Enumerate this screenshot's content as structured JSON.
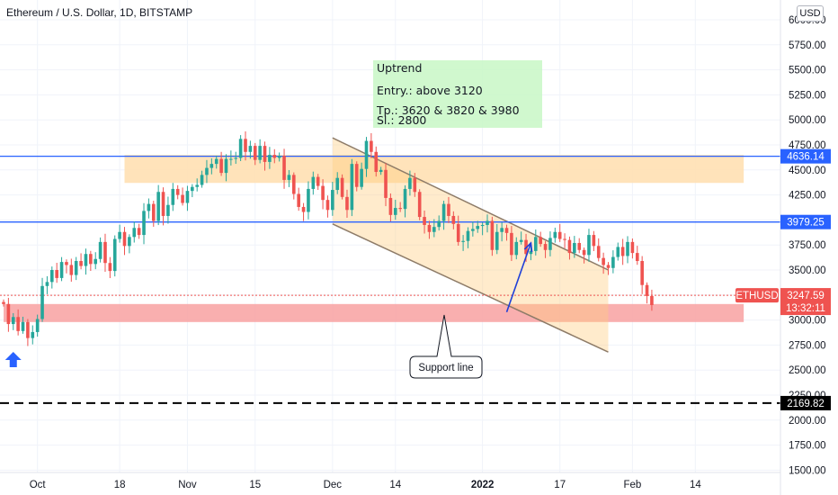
{
  "header": {
    "title": "Ethereum / U.S. Dollar, 1D, BITSTAMP",
    "currency": "USD"
  },
  "colors": {
    "up": "#26a69a",
    "down": "#ef5350",
    "hline": "#2962ff",
    "resistance_zone": "#ffe0b2",
    "support_zone": "#f8a1a1",
    "channel": "#8d7b68",
    "note_bg": "#c8f7c5",
    "price_tag": "#ef5350"
  },
  "chart_data": {
    "type": "candlestick",
    "symbol": "ETHUSD",
    "ylim": [
      1450,
      6100
    ],
    "y_ticks": [
      "6000.00",
      "5750.00",
      "5500.00",
      "5250.00",
      "5000.00",
      "4750.00",
      "4500.00",
      "4250.00",
      "4000.00",
      "3750.00",
      "3500.00",
      "3250.00",
      "3000.00",
      "2750.00",
      "2500.00",
      "2250.00",
      "2000.00",
      "1750.00",
      "1500.00"
    ],
    "x_ticks": [
      {
        "label": "Oct",
        "date": "2021-10-01"
      },
      {
        "label": "18",
        "date": "2021-10-18"
      },
      {
        "label": "Nov",
        "date": "2021-11-01"
      },
      {
        "label": "15",
        "date": "2021-11-15"
      },
      {
        "label": "Dec",
        "date": "2021-12-01"
      },
      {
        "label": "14",
        "date": "2021-12-14"
      },
      {
        "label": "2022",
        "date": "2022-01-01"
      },
      {
        "label": "17",
        "date": "2022-01-17"
      },
      {
        "label": "Feb",
        "date": "2022-02-01"
      },
      {
        "label": "14",
        "date": "2022-02-14"
      }
    ],
    "first_date": "2021-09-24",
    "closes": [
      3160,
      2960,
      3030,
      2890,
      2980,
      2820,
      2880,
      3010,
      3340,
      3380,
      3500,
      3420,
      3580,
      3550,
      3450,
      3590,
      3540,
      3660,
      3560,
      3610,
      3780,
      3570,
      3490,
      3810,
      3880,
      3740,
      3830,
      3920,
      3850,
      4090,
      4160,
      3990,
      4280,
      4040,
      4150,
      4310,
      4250,
      4170,
      4290,
      4330,
      4350,
      4450,
      4520,
      4560,
      4610,
      4470,
      4610,
      4610,
      4620,
      4810,
      4680,
      4740,
      4600,
      4740,
      4580,
      4650,
      4620,
      4640,
      4400,
      4450,
      4260,
      4130,
      4080,
      4310,
      4430,
      4340,
      4200,
      4100,
      4300,
      4420,
      4230,
      4100,
      4560,
      4330,
      4510,
      4790,
      4680,
      4480,
      4500,
      4220,
      4050,
      4120,
      4110,
      4310,
      4420,
      4280,
      4030,
      3950,
      3880,
      3930,
      3990,
      4160,
      4040,
      3960,
      3780,
      3790,
      3890,
      3910,
      3940,
      3950,
      3990,
      3700,
      3880,
      3920,
      3870,
      3650,
      3780,
      3800,
      3660,
      3690,
      3830,
      3760,
      3700,
      3820,
      3880,
      3810,
      3800,
      3670,
      3770,
      3700,
      3650,
      3850,
      3740,
      3620,
      3550,
      3520,
      3630,
      3730,
      3640,
      3780,
      3670,
      3590,
      3350,
      3240,
      3150
    ],
    "current_price": "3247.59",
    "countdown": "13:32:11",
    "horizontal_levels": [
      {
        "label": "4636.14",
        "value": 4636.14,
        "color": "#2962ff",
        "style": "solid"
      },
      {
        "label": "3979.25",
        "value": 3979.25,
        "color": "#2962ff",
        "style": "solid"
      },
      {
        "label": "2169.82",
        "value": 2169.82,
        "color": "#000000",
        "style": "dashed"
      }
    ],
    "zones": [
      {
        "kind": "resistance",
        "from_date": "2021-10-19",
        "to_date": "2022-02-24",
        "low": 4370,
        "high": 4650
      },
      {
        "kind": "support",
        "from_date": "2021-09-24",
        "to_date": "2022-02-24",
        "low": 2980,
        "high": 3160
      }
    ],
    "channel": {
      "upper": [
        {
          "date": "2021-12-01",
          "price": 4820
        },
        {
          "date": "2022-01-27",
          "price": 3500
        }
      ],
      "lower": [
        {
          "date": "2021-12-01",
          "price": 3960
        },
        {
          "date": "2022-01-27",
          "price": 2680
        }
      ],
      "fill_to_date": "2022-01-27"
    },
    "projection_arrow": {
      "from": {
        "date": "2022-01-06",
        "price": 3080
      },
      "to": {
        "date": "2022-01-11",
        "price": 3770
      }
    },
    "buy_arrow_date": "2021-09-26",
    "annotations": {
      "note": [
        "Uptrend",
        "Entry.: above 3120",
        "Tp.: 3620 & 3820 & 3980",
        "Sl.: 2800"
      ],
      "callout": "Support line"
    }
  }
}
